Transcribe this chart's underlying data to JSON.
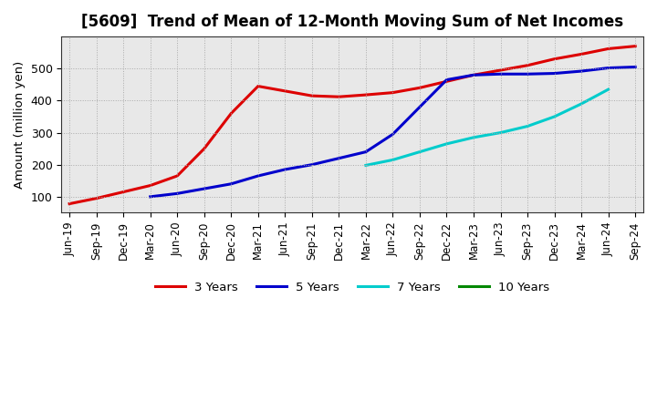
{
  "title": "[5609]  Trend of Mean of 12-Month Moving Sum of Net Incomes",
  "ylabel": "Amount (million yen)",
  "xlabel": "",
  "background_color": "#ffffff",
  "plot_bg_color": "#e8e8e8",
  "grid_color": "#aaaaaa",
  "ylim": [
    50,
    600
  ],
  "yticks": [
    100,
    200,
    300,
    400,
    500
  ],
  "legend_labels": [
    "3 Years",
    "5 Years",
    "7 Years",
    "10 Years"
  ],
  "legend_colors": [
    "#dd0000",
    "#0000cc",
    "#00cccc",
    "#008800"
  ],
  "x_labels": [
    "Jun-19",
    "Sep-19",
    "Dec-19",
    "Mar-20",
    "Jun-20",
    "Sep-20",
    "Dec-20",
    "Mar-21",
    "Jun-21",
    "Sep-21",
    "Dec-21",
    "Mar-22",
    "Jun-22",
    "Sep-22",
    "Dec-22",
    "Mar-23",
    "Jun-23",
    "Sep-23",
    "Dec-23",
    "Mar-24",
    "Jun-24",
    "Sep-24"
  ],
  "series_3yr": {
    "x_indices": [
      0,
      1,
      2,
      3,
      4,
      5,
      6,
      7,
      8,
      9,
      10,
      11,
      12,
      13,
      14,
      15,
      16,
      17,
      18,
      19,
      20,
      21
    ],
    "y": [
      78,
      95,
      115,
      135,
      165,
      250,
      360,
      445,
      430,
      415,
      412,
      418,
      425,
      440,
      460,
      480,
      495,
      510,
      530,
      545,
      562,
      570
    ]
  },
  "series_5yr": {
    "x_indices": [
      3,
      4,
      5,
      6,
      7,
      8,
      9,
      10,
      11,
      12,
      13,
      14,
      15,
      16,
      17,
      18,
      19,
      20,
      21
    ],
    "y": [
      100,
      110,
      125,
      140,
      165,
      185,
      200,
      220,
      240,
      295,
      380,
      465,
      480,
      483,
      483,
      485,
      492,
      502,
      505
    ]
  },
  "series_7yr": {
    "x_indices": [
      11,
      12,
      13,
      14,
      15,
      16,
      17,
      18,
      19,
      20
    ],
    "y": [
      198,
      215,
      240,
      265,
      285,
      300,
      320,
      350,
      390,
      435
    ]
  },
  "series_10yr": {
    "x_indices": [],
    "y": []
  }
}
